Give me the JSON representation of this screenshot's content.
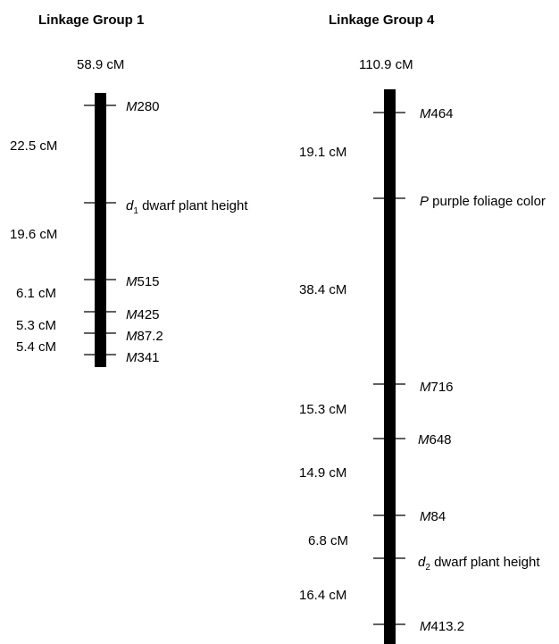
{
  "groups": [
    {
      "title": "Linkage Group 1",
      "total": "58.9 cM",
      "markers": [
        {
          "prefix": "M",
          "text": "280",
          "sub": ""
        },
        {
          "prefix": "d",
          "sub": "1",
          "text": " dwarf plant height"
        },
        {
          "prefix": "M",
          "text": "515",
          "sub": ""
        },
        {
          "prefix": "M",
          "text": "425",
          "sub": ""
        },
        {
          "prefix": "M",
          "text": "87.2",
          "sub": ""
        },
        {
          "prefix": "M",
          "text": "341",
          "sub": ""
        }
      ],
      "distances": [
        "22.5 cM",
        "19.6 cM",
        "6.1 cM",
        "5.3 cM",
        "5.4 cM"
      ]
    },
    {
      "title": "Linkage Group 4",
      "total": "110.9 cM",
      "markers": [
        {
          "prefix": "M",
          "text": "464",
          "sub": ""
        },
        {
          "prefix": "P",
          "text": " purple foliage color",
          "sub": ""
        },
        {
          "prefix": "M",
          "text": "716",
          "sub": ""
        },
        {
          "prefix": "M",
          "text": "648",
          "sub": ""
        },
        {
          "prefix": "M",
          "text": "84",
          "sub": ""
        },
        {
          "prefix": "d",
          "sub": "2",
          "text": " dwarf plant height"
        },
        {
          "prefix": "M",
          "text": "413.2",
          "sub": ""
        }
      ],
      "distances": [
        "19.1 cM",
        "38.4 cM",
        "15.3 cM",
        "14.9 cM",
        "6.8 cM",
        "16.4 cM"
      ]
    }
  ]
}
